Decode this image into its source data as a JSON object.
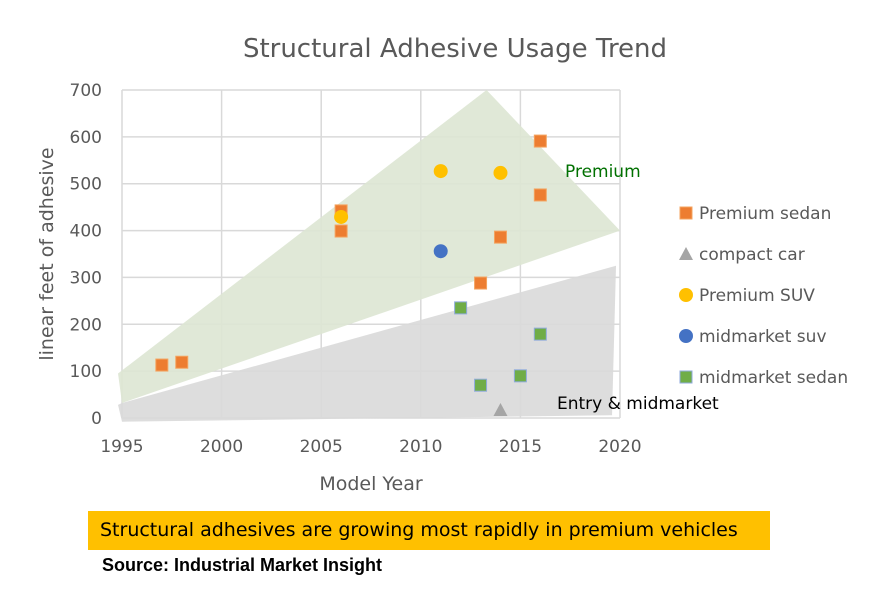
{
  "chart_data": {
    "type": "scatter",
    "title": "Structural Adhesive Usage Trend",
    "xlabel": "Model Year",
    "ylabel": "linear feet of adhesive",
    "xlim": [
      1995,
      2020
    ],
    "ylim": [
      0,
      700
    ],
    "xticks": [
      1995,
      2000,
      2005,
      2010,
      2015,
      2020
    ],
    "yticks": [
      0,
      100,
      200,
      300,
      400,
      500,
      600,
      700
    ],
    "grid": true,
    "legend_position": "right",
    "series": [
      {
        "name": "Premium sedan",
        "marker": "square",
        "color": "#ED7D31",
        "points": [
          [
            1997,
            113
          ],
          [
            1998,
            119
          ],
          [
            2006,
            442
          ],
          [
            2006,
            399
          ],
          [
            2013,
            288
          ],
          [
            2014,
            386
          ],
          [
            2016,
            591
          ],
          [
            2016,
            476
          ]
        ]
      },
      {
        "name": "compact car",
        "marker": "triangle",
        "color": "#A5A5A5",
        "points": [
          [
            2014,
            17
          ]
        ]
      },
      {
        "name": "Premium SUV",
        "marker": "circle",
        "color": "#FFC000",
        "points": [
          [
            2006,
            429
          ],
          [
            2011,
            527
          ],
          [
            2014,
            523
          ]
        ]
      },
      {
        "name": "midmarket suv",
        "marker": "circle",
        "color": "#4472C4",
        "points": [
          [
            2011,
            356
          ]
        ]
      },
      {
        "name": "midmarket sedan",
        "marker": "square",
        "color": "#70AD47",
        "points": [
          [
            2012,
            235
          ],
          [
            2013,
            70
          ],
          [
            2015,
            90
          ],
          [
            2016,
            179
          ]
        ]
      }
    ],
    "regions": [
      {
        "label": "Premium",
        "label_color": "#007000",
        "fill": "#dde5d3",
        "polygon": [
          [
            1994.8,
            95
          ],
          [
            1995,
            32
          ],
          [
            2020,
            400
          ],
          [
            2013.3,
            700
          ]
        ]
      },
      {
        "label": "Entry & midmarket",
        "label_color": "#000000",
        "fill": "#d9d9d9",
        "polygon": [
          [
            1994.8,
            28
          ],
          [
            1995,
            32
          ],
          [
            2019.8,
            325
          ],
          [
            2019.6,
            6
          ],
          [
            1995,
            -8
          ]
        ]
      }
    ]
  },
  "caption": "Structural adhesives are growing most rapidly in premium vehicles",
  "source": "Source:  Industrial Market Insight"
}
